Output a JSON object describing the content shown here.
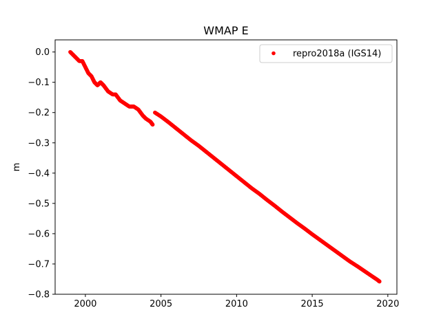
{
  "chart_data": {
    "type": "scatter",
    "title": "WMAP E",
    "xlabel": "",
    "ylabel": "m",
    "xlim": [
      1998.0,
      2020.6
    ],
    "ylim": [
      -0.8,
      0.04
    ],
    "xticks": [
      2000,
      2005,
      2010,
      2015,
      2020
    ],
    "xtick_labels": [
      "2000",
      "2005",
      "2010",
      "2015",
      "2020"
    ],
    "yticks": [
      0.0,
      -0.1,
      -0.2,
      -0.3,
      -0.4,
      -0.5,
      -0.6,
      -0.7,
      -0.8
    ],
    "ytick_labels": [
      "0.0",
      "−0.1",
      "−0.2",
      "−0.3",
      "−0.4",
      "−0.5",
      "−0.6",
      "−0.7",
      "−0.8"
    ],
    "grid": false,
    "legend_position": "top-right",
    "series": [
      {
        "name": "repro2018a (IGS14)",
        "color": "#ff0000",
        "marker": "circle",
        "x": [
          1999.0,
          1999.2,
          1999.4,
          1999.6,
          1999.8,
          2000.0,
          2000.2,
          2000.4,
          2000.6,
          2000.8,
          2001.0,
          2001.2,
          2001.5,
          2001.8,
          2002.0,
          2002.3,
          2002.6,
          2002.9,
          2003.2,
          2003.5,
          2003.8,
          2004.0,
          2004.3,
          2004.45,
          2004.6,
          2005.0,
          2005.5,
          2006.0,
          2006.5,
          2007.0,
          2007.5,
          2008.0,
          2008.5,
          2009.0,
          2009.5,
          2010.0,
          2010.5,
          2011.0,
          2011.5,
          2012.0,
          2012.5,
          2013.0,
          2013.5,
          2014.0,
          2014.5,
          2015.0,
          2015.5,
          2016.0,
          2016.5,
          2017.0,
          2017.5,
          2018.0,
          2018.5,
          2019.0,
          2019.3,
          2019.45
        ],
        "y": [
          0.0,
          -0.01,
          -0.02,
          -0.03,
          -0.03,
          -0.05,
          -0.07,
          -0.08,
          -0.1,
          -0.11,
          -0.1,
          -0.11,
          -0.13,
          -0.14,
          -0.14,
          -0.16,
          -0.17,
          -0.18,
          -0.18,
          -0.19,
          -0.21,
          -0.22,
          -0.23,
          -0.24,
          -0.2,
          -0.213,
          -0.232,
          -0.252,
          -0.272,
          -0.292,
          -0.31,
          -0.33,
          -0.35,
          -0.37,
          -0.39,
          -0.41,
          -0.43,
          -0.45,
          -0.468,
          -0.488,
          -0.507,
          -0.527,
          -0.546,
          -0.565,
          -0.583,
          -0.602,
          -0.62,
          -0.638,
          -0.656,
          -0.674,
          -0.692,
          -0.708,
          -0.725,
          -0.742,
          -0.752,
          -0.758
        ]
      }
    ]
  }
}
